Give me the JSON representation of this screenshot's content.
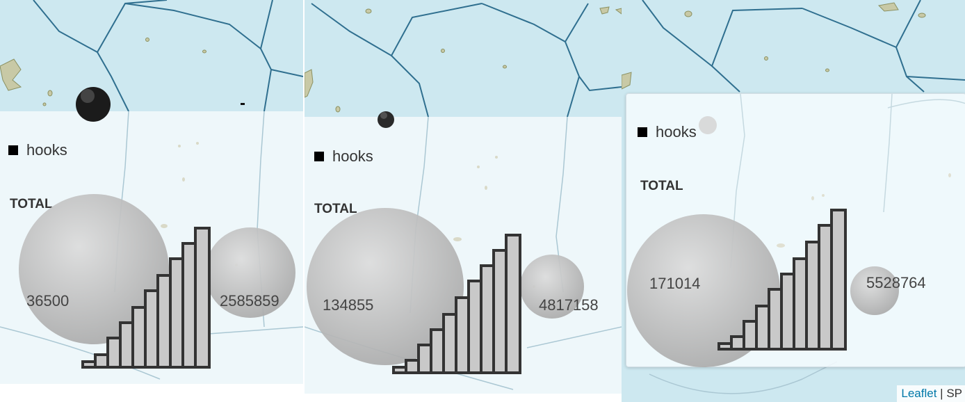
{
  "legend": {
    "hooks_label": "hooks",
    "total_label": "TOTAL"
  },
  "panels": [
    {
      "small_value": "36500",
      "large_value": "2585859"
    },
    {
      "small_value": "134855",
      "large_value": "4817158"
    },
    {
      "small_value": "171014",
      "large_value": "5528764"
    }
  ],
  "attribution": {
    "leaflet": "Leaflet",
    "separator": " | ",
    "rest": "SP"
  },
  "colors": {
    "sea": "#cde8f0",
    "sea_light": "#eef7fa",
    "eez_line": "#2f6f8f",
    "island": "#c8c9a6",
    "bubble": "#c9c9c9",
    "bars": "#333333"
  }
}
